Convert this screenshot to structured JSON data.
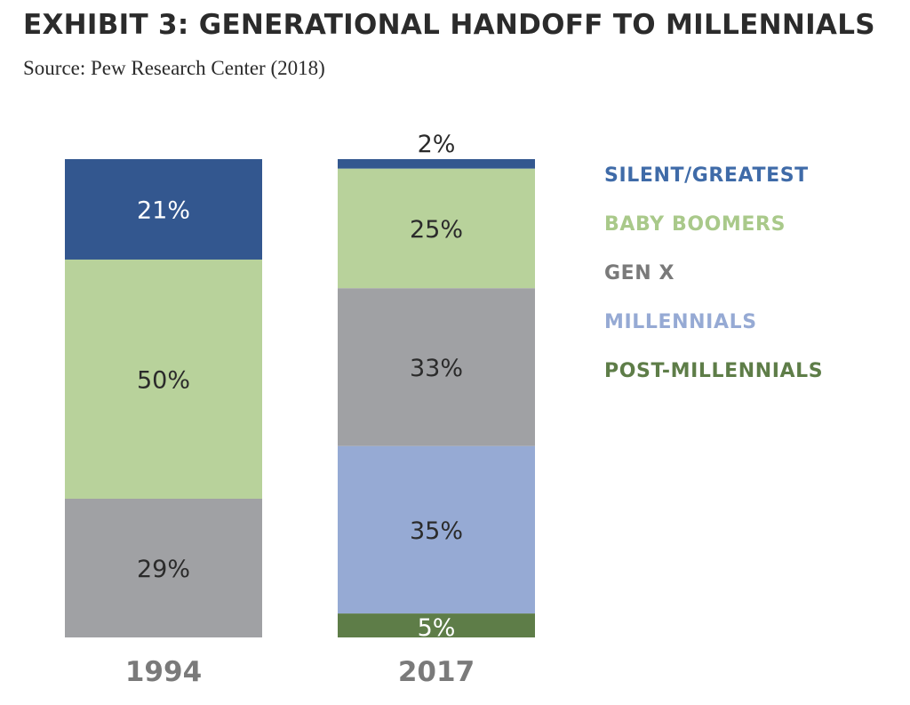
{
  "header": {
    "title": "EXHIBIT 3: GENERATIONAL HANDOFF TO MILLENNIALS",
    "subtitle": "Source: Pew Research Center (2018)"
  },
  "chart_data": {
    "type": "bar",
    "stacked": true,
    "unit": "%",
    "categories": [
      "1994",
      "2017"
    ],
    "series": [
      {
        "name": "SILENT/GREATEST",
        "color": "#33578f",
        "label_color": "#3f6ba8",
        "values": [
          21,
          2
        ]
      },
      {
        "name": "BABY BOOMERS",
        "color": "#b8d29b",
        "label_color": "#a9c98a",
        "values": [
          50,
          25
        ]
      },
      {
        "name": "GEN X",
        "color": "#a0a1a4",
        "label_color": "#7a7a7a",
        "values": [
          29,
          33
        ]
      },
      {
        "name": "MILLENNIALS",
        "color": "#96aad4",
        "label_color": "#96aad4",
        "values": [
          0,
          35
        ]
      },
      {
        "name": "POST-MILLENNIALS",
        "color": "#5e7d48",
        "label_color": "#5e7d48",
        "values": [
          0,
          5
        ]
      }
    ],
    "data_label_colors": {
      "SILENT/GREATEST": [
        "#ffffff",
        "#2b2b2b"
      ],
      "BABY BOOMERS": [
        "#2b2b2b",
        "#2b2b2b"
      ],
      "GEN X": [
        "#2b2b2b",
        "#2b2b2b"
      ],
      "MILLENNIALS": [
        "#2b2b2b",
        "#2b2b2b"
      ],
      "POST-MILLENNIALS": [
        "#ffffff",
        "#ffffff"
      ]
    },
    "legend_position": "right",
    "grid": false,
    "ylim": [
      0,
      100
    ]
  }
}
